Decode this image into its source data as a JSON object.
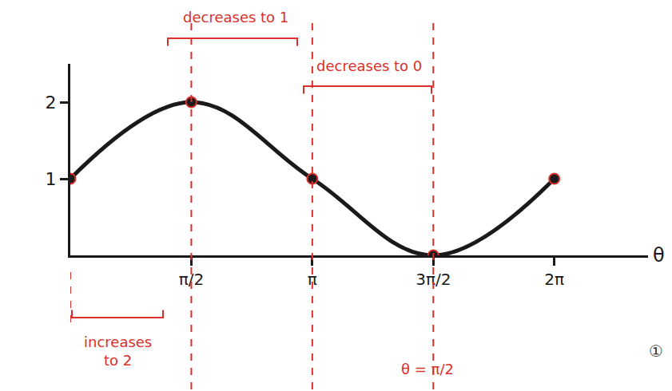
{
  "chart_data": {
    "type": "line",
    "x": [
      0,
      1.5708,
      3.1416,
      4.7124,
      6.2832
    ],
    "values": [
      1,
      2,
      1,
      0,
      1
    ],
    "color": "#1a1a1a",
    "marker": "circle",
    "line_style": "solid",
    "x_label": "θ",
    "xlim": [
      0,
      7.5
    ],
    "ylim": [
      0,
      2.5
    ],
    "xticks": [
      {
        "value": 1.5708,
        "label": "π/2"
      },
      {
        "value": 3.1416,
        "label": "π"
      },
      {
        "value": 4.7124,
        "label": "3π/2"
      },
      {
        "value": 6.2832,
        "label": "2π"
      }
    ],
    "yticks": [
      1,
      2
    ],
    "grid": false,
    "reference_lines": {
      "x": [
        0,
        1.5708,
        3.1416,
        4.7124
      ],
      "color": "#d9302c"
    },
    "annotations": [
      "decreases to 1",
      "decreases to 0",
      "increases to 2",
      "θ = π/2",
      "①"
    ]
  }
}
